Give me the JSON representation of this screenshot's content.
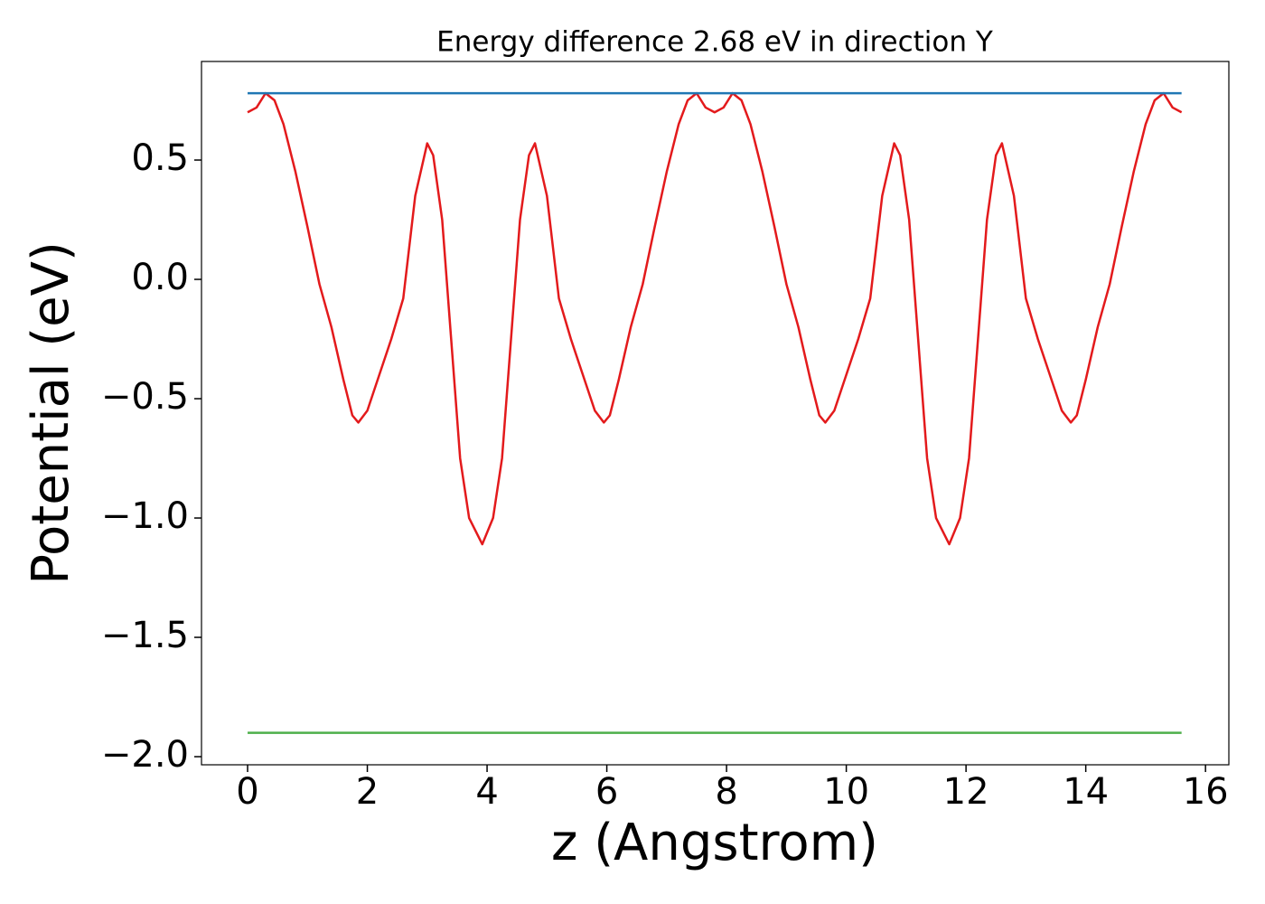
{
  "chart_data": {
    "type": "line",
    "title": "Energy difference 2.68 eV in direction Y",
    "xlabel": "z (Angstrom)",
    "ylabel": "Potential (eV)",
    "xlim": [
      -0.77,
      16.39
    ],
    "ylim": [
      -2.034,
      0.913
    ],
    "xticks": [
      0,
      2,
      4,
      6,
      8,
      10,
      12,
      14,
      16
    ],
    "yticks": [
      {
        "value": -2,
        "label": "−2.0"
      },
      {
        "value": -1.5,
        "label": "−1.5"
      },
      {
        "value": -1,
        "label": "−1.0"
      },
      {
        "value": -0.5,
        "label": "−0.5"
      },
      {
        "value": 0,
        "label": "0.0"
      },
      0.5
    ],
    "grid": false,
    "series": [
      {
        "color": "#e31a1c",
        "x": [
          0,
          0.15,
          0.3,
          0.45,
          0.6,
          0.8,
          1.0,
          1.2,
          1.4,
          1.6,
          1.75,
          1.85,
          2.0,
          2.2,
          2.4,
          2.6,
          2.8,
          3.0,
          3.1,
          3.25,
          3.4,
          3.55,
          3.7,
          3.92,
          4.1,
          4.25,
          4.4,
          4.55,
          4.7,
          4.8,
          5.0,
          5.2,
          5.4,
          5.6,
          5.8,
          5.95,
          6.05,
          6.2,
          6.4,
          6.6,
          6.8,
          7.0,
          7.2,
          7.35,
          7.5,
          7.65,
          7.8,
          7.95,
          8.1,
          8.25,
          8.4,
          8.6,
          8.8,
          9.0,
          9.2,
          9.4,
          9.55,
          9.65,
          9.8,
          10.0,
          10.2,
          10.4,
          10.6,
          10.8,
          10.9,
          11.05,
          11.2,
          11.35,
          11.5,
          11.72,
          11.9,
          12.05,
          12.2,
          12.35,
          12.5,
          12.6,
          12.8,
          13.0,
          13.2,
          13.4,
          13.6,
          13.75,
          13.85,
          14.0,
          14.2,
          14.4,
          14.6,
          14.8,
          15.0,
          15.15,
          15.3,
          15.45,
          15.6
        ],
        "values": [
          0.7,
          0.72,
          0.78,
          0.75,
          0.65,
          0.45,
          0.22,
          -0.02,
          -0.2,
          -0.42,
          -0.57,
          -0.6,
          -0.55,
          -0.4,
          -0.25,
          -0.08,
          0.35,
          0.57,
          0.52,
          0.25,
          -0.25,
          -0.75,
          -1.0,
          -1.11,
          -1.0,
          -0.75,
          -0.25,
          0.25,
          0.52,
          0.57,
          0.35,
          -0.08,
          -0.25,
          -0.4,
          -0.55,
          -0.6,
          -0.57,
          -0.42,
          -0.2,
          -0.02,
          0.22,
          0.45,
          0.65,
          0.75,
          0.78,
          0.72,
          0.7,
          0.72,
          0.78,
          0.75,
          0.65,
          0.45,
          0.22,
          -0.02,
          -0.2,
          -0.42,
          -0.57,
          -0.6,
          -0.55,
          -0.4,
          -0.25,
          -0.08,
          0.35,
          0.57,
          0.52,
          0.25,
          -0.25,
          -0.75,
          -1.0,
          -1.11,
          -1.0,
          -0.75,
          -0.25,
          0.25,
          0.52,
          0.57,
          0.35,
          -0.08,
          -0.25,
          -0.4,
          -0.55,
          -0.6,
          -0.57,
          -0.42,
          -0.2,
          -0.02,
          0.22,
          0.45,
          0.65,
          0.75,
          0.78,
          0.72,
          0.7
        ]
      },
      {
        "color": "#1f77b4",
        "x": [
          0,
          15.6
        ],
        "values": [
          0.78,
          0.78
        ]
      },
      {
        "color": "#4daf4a",
        "x": [
          0,
          15.6
        ],
        "values": [
          -1.9,
          -1.9
        ]
      }
    ]
  }
}
